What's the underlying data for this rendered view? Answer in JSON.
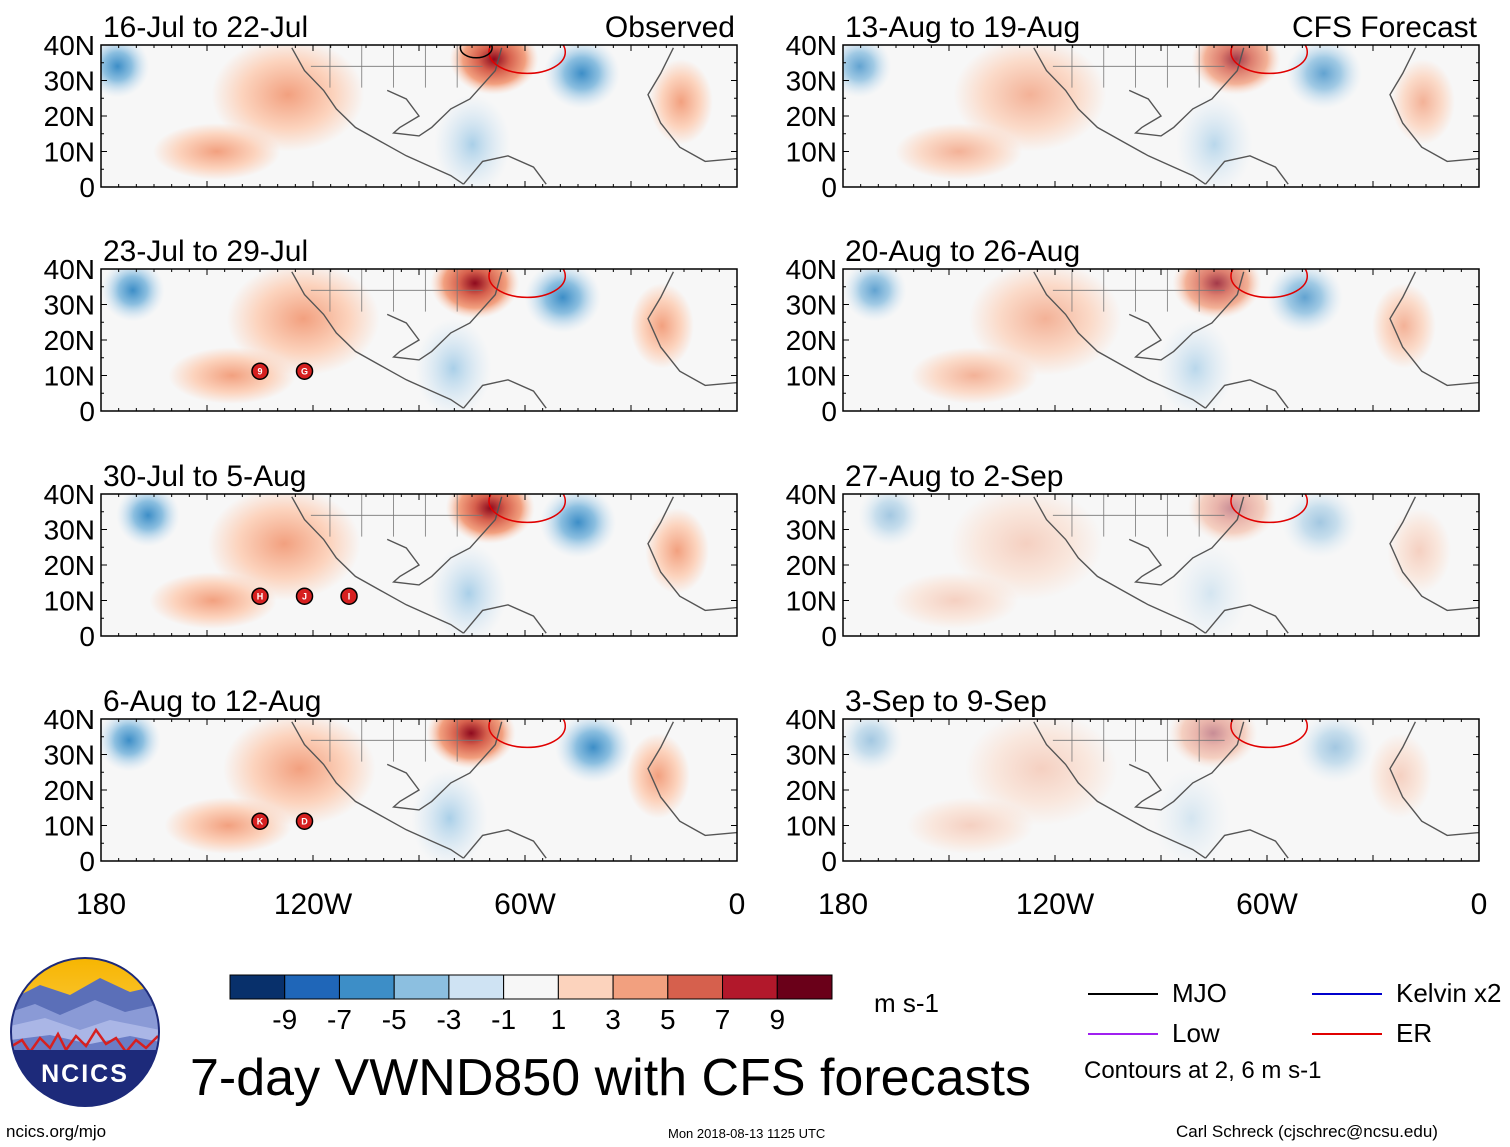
{
  "title": "7-day VWND850 with CFS forecasts",
  "left_column_label": "Observed",
  "right_column_label": "CFS Forecast",
  "panels_observed": [
    {
      "period": "16-Jul to 22-Jul",
      "storms": []
    },
    {
      "period": "23-Jul to 29-Jul",
      "storms": [
        "9",
        "G"
      ]
    },
    {
      "period": "30-Jul to 5-Aug",
      "storms": [
        "H",
        "J",
        "I"
      ]
    },
    {
      "period": "6-Aug to 12-Aug",
      "storms": [
        "K",
        "D"
      ]
    }
  ],
  "panels_forecast": [
    {
      "period": "13-Aug to 19-Aug"
    },
    {
      "period": "20-Aug to 26-Aug"
    },
    {
      "period": "27-Aug to 2-Sep"
    },
    {
      "period": "3-Sep to 9-Sep"
    }
  ],
  "chart_data": {
    "type": "heatmap",
    "variable": "VWND850 anomaly",
    "x_axis": {
      "ticks": [
        "180",
        "120W",
        "60W",
        "0"
      ],
      "range_deg": [
        -180,
        0
      ]
    },
    "y_axis": {
      "ticks": [
        "40N",
        "30N",
        "20N",
        "10N",
        "0"
      ],
      "range_deg": [
        0,
        40
      ]
    },
    "colorbar": {
      "labels": [
        "-9",
        "-7",
        "-5",
        "-3",
        "-1",
        "1",
        "3",
        "5",
        "7",
        "9"
      ],
      "colors": [
        "#08306b",
        "#1f66b8",
        "#3d8ec7",
        "#8cbfe0",
        "#cfe3f3",
        "#f7f7f7",
        "#fcd3bd",
        "#f2a07f",
        "#d6604d",
        "#b2182b",
        "#6a0019"
      ],
      "units": "m s-1"
    },
    "legend": [
      {
        "name": "MJO",
        "color": "#000000"
      },
      {
        "name": "Kelvin x2",
        "color": "#0000cc"
      },
      {
        "name": "Low",
        "color": "#a020f0"
      },
      {
        "name": "ER",
        "color": "#e00000"
      }
    ],
    "contours_note": "Contours at 2, 6 m s-1"
  },
  "footer": {
    "left": "ncics.org/mjo",
    "center": "Mon 2018-08-13 1125 UTC",
    "right": "Carl Schreck (cjschrec@ncsu.edu)",
    "logo_text": "NCICS"
  }
}
